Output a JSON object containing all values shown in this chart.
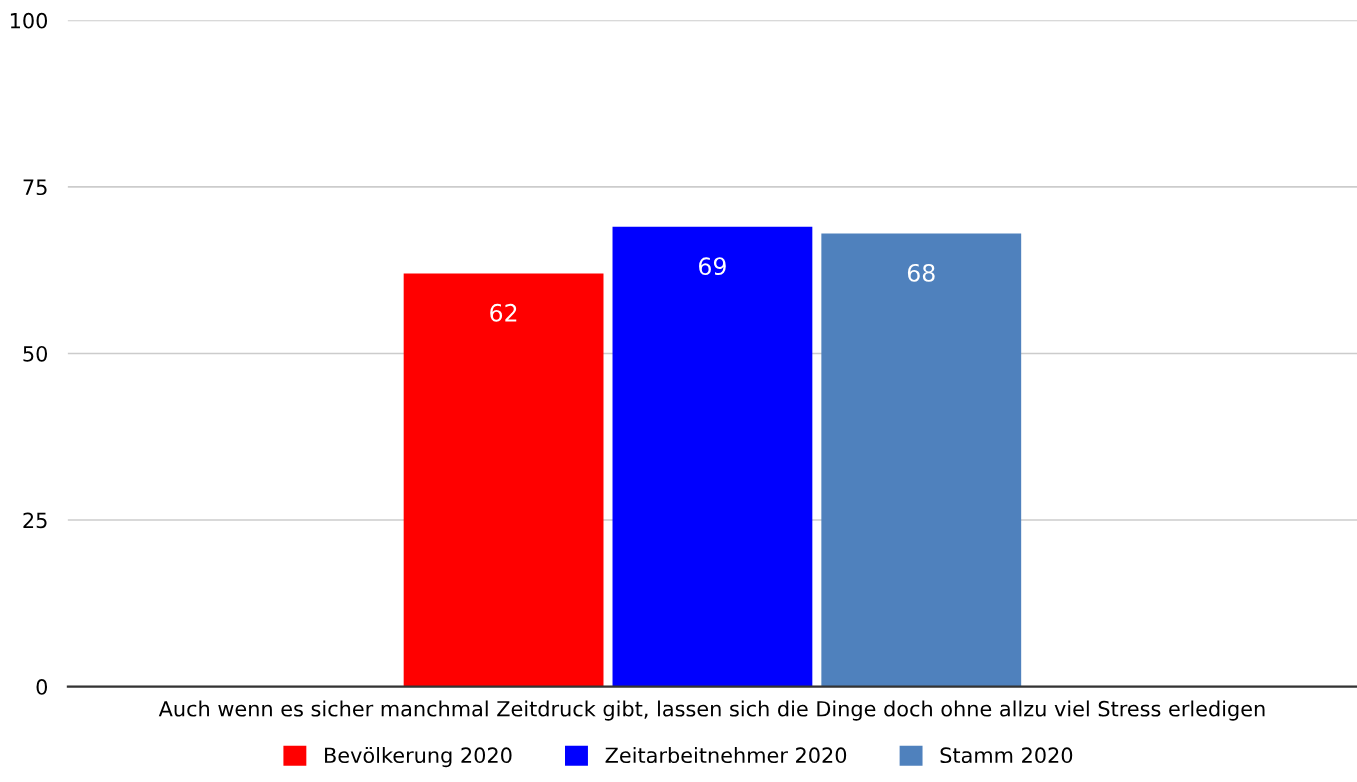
{
  "chart_data": {
    "type": "bar",
    "categories": [
      "Auch wenn es sicher manchmal Zeitdruck gibt, lassen sich die Dinge doch ohne allzu viel Stress erledigen"
    ],
    "series": [
      {
        "name": "Bevölkerung 2020",
        "color": "#ff0000",
        "values": [
          62
        ]
      },
      {
        "name": "Zeitarbeitnehmer 2020",
        "color": "#0000ff",
        "values": [
          69
        ]
      },
      {
        "name": "Stamm 2020",
        "color": "#4f81bd",
        "values": [
          68
        ]
      }
    ],
    "ylim": [
      0,
      100
    ],
    "yticks": [
      0,
      25,
      50,
      75,
      100
    ],
    "grid": "y",
    "legend": "bottom",
    "data_labels": true
  }
}
